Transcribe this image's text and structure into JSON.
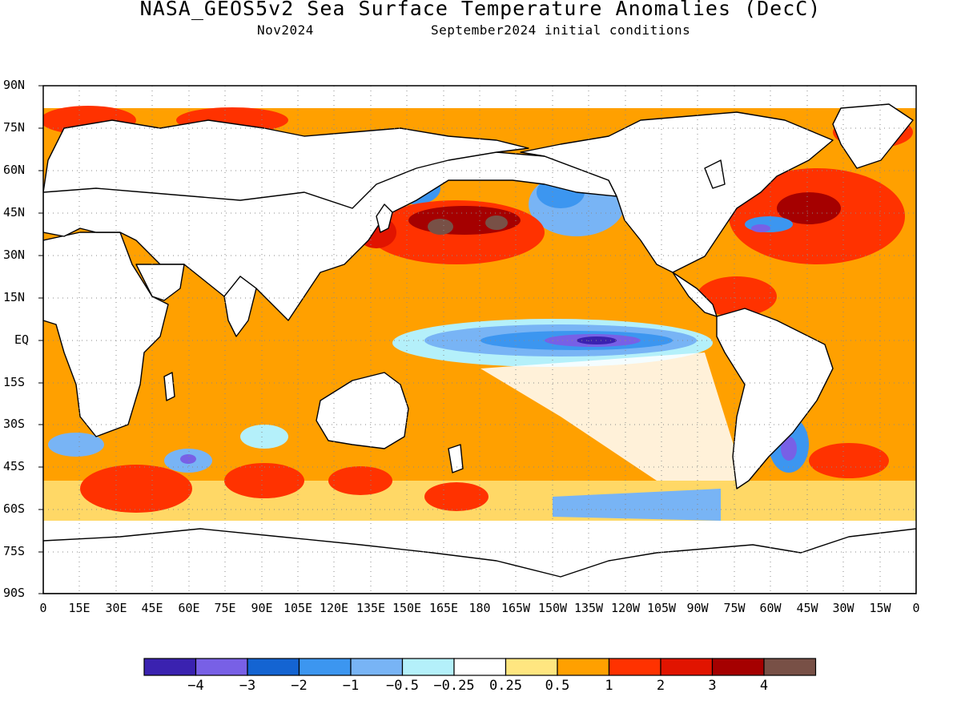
{
  "title": "NASA_GEOS5v2 Sea Surface Temperature Anomalies (DecC)",
  "subtitle_left": "Nov2024",
  "subtitle_right": "September2024 initial conditions",
  "lat_labels": [
    "90N",
    "75N",
    "60N",
    "45N",
    "30N",
    "15N",
    "EQ",
    "15S",
    "30S",
    "45S",
    "60S",
    "75S",
    "90S"
  ],
  "lon_labels": [
    "0",
    "15E",
    "30E",
    "45E",
    "60E",
    "75E",
    "90E",
    "105E",
    "120E",
    "135E",
    "150E",
    "165E",
    "180",
    "165W",
    "150W",
    "135W",
    "120W",
    "105W",
    "90W",
    "75W",
    "60W",
    "45W",
    "30W",
    "15W",
    "0"
  ],
  "colorbar": {
    "colors": [
      "#3a22b0",
      "#7860e6",
      "#1464d2",
      "#3c96f0",
      "#78b4f5",
      "#b4f0fa",
      "#ffffff",
      "#ffe680",
      "#ffa000",
      "#ff3200",
      "#e11400",
      "#a50000",
      "#785046"
    ],
    "labels": [
      "-4",
      "-3",
      "-2",
      "-1",
      "-0.5",
      "-0.25",
      "0.25",
      "0.5",
      "1",
      "2",
      "3",
      "4"
    ]
  },
  "legend_colors": {
    "land": "#ffffff",
    "coastline": "#000000",
    "grid": "#8a8a8a"
  }
}
